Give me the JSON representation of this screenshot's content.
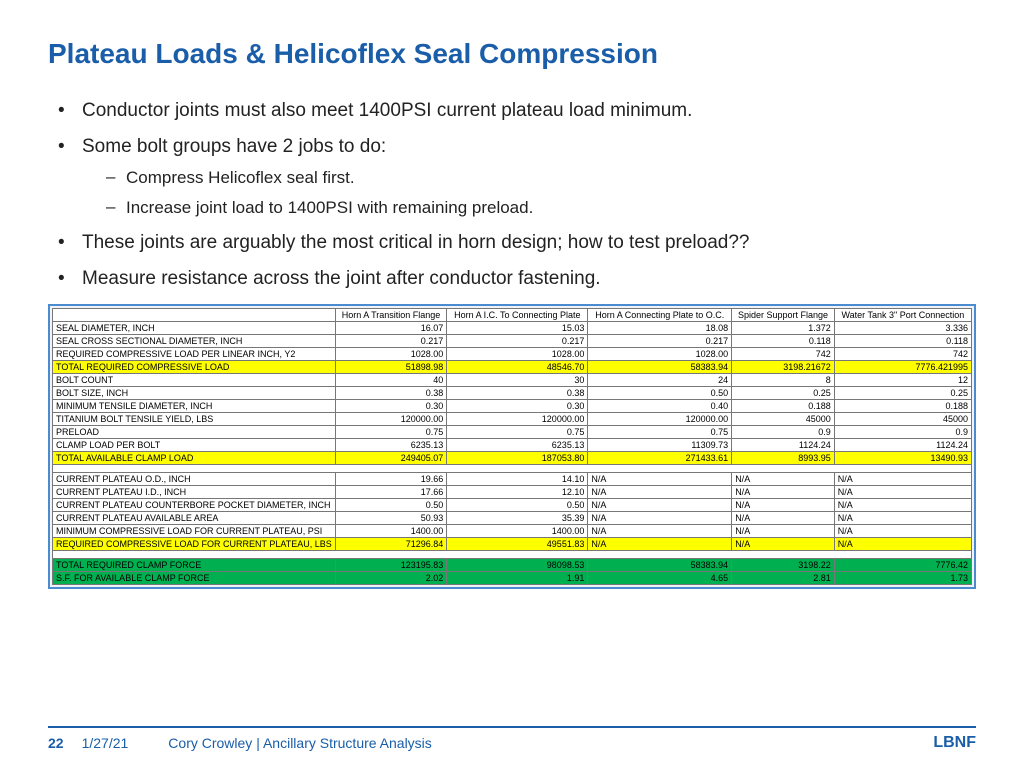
{
  "title": "Plateau Loads & Helicoflex Seal Compression",
  "bullets": {
    "b1": "Conductor joints must also meet 1400PSI current plateau load minimum.",
    "b2": "Some bolt groups have 2 jobs to do:",
    "b2a": "Compress Helicoflex seal first.",
    "b2b": "Increase joint load to 1400PSI with remaining preload.",
    "b3": "These joints are arguably the most critical in horn design; how to test preload??",
    "b4": "Measure resistance across the joint after conductor fastening."
  },
  "table": {
    "columns": [
      "",
      "Horn A Transition Flange",
      "Horn A I.C. To Connecting Plate",
      "Horn A Connecting Plate to O.C.",
      "Spider Support Flange",
      "Water Tank 3\" Port Connection"
    ],
    "rows": [
      {
        "label": "SEAL DIAMETER, INCH",
        "vals": [
          "16.07",
          "15.03",
          "18.08",
          "1.372",
          "3.336"
        ],
        "hl": ""
      },
      {
        "label": "SEAL CROSS SECTIONAL DIAMETER, INCH",
        "vals": [
          "0.217",
          "0.217",
          "0.217",
          "0.118",
          "0.118"
        ],
        "hl": ""
      },
      {
        "label": "REQUIRED COMPRESSIVE LOAD PER LINEAR INCH, Y2",
        "vals": [
          "1028.00",
          "1028.00",
          "1028.00",
          "742",
          "742"
        ],
        "hl": ""
      },
      {
        "label": "TOTAL REQUIRED COMPRESSIVE LOAD",
        "vals": [
          "51898.98",
          "48546.70",
          "58383.94",
          "3198.21672",
          "7776.421995"
        ],
        "hl": "yellow"
      },
      {
        "label": "BOLT COUNT",
        "vals": [
          "40",
          "30",
          "24",
          "8",
          "12"
        ],
        "hl": ""
      },
      {
        "label": "BOLT SIZE, INCH",
        "vals": [
          "0.38",
          "0.38",
          "0.50",
          "0.25",
          "0.25"
        ],
        "hl": ""
      },
      {
        "label": "MINIMUM TENSILE DIAMETER, INCH",
        "vals": [
          "0.30",
          "0.30",
          "0.40",
          "0.188",
          "0.188"
        ],
        "hl": ""
      },
      {
        "label": "TITANIUM BOLT TENSILE YIELD, LBS",
        "vals": [
          "120000.00",
          "120000.00",
          "120000.00",
          "45000",
          "45000"
        ],
        "hl": ""
      },
      {
        "label": "PRELOAD",
        "vals": [
          "0.75",
          "0.75",
          "0.75",
          "0.9",
          "0.9"
        ],
        "hl": ""
      },
      {
        "label": "CLAMP LOAD PER BOLT",
        "vals": [
          "6235.13",
          "6235.13",
          "11309.73",
          "1124.24",
          "1124.24"
        ],
        "hl": ""
      },
      {
        "label": "TOTAL AVAILABLE CLAMP LOAD",
        "vals": [
          "249405.07",
          "187053.80",
          "271433.61",
          "8993.95",
          "13490.93"
        ],
        "hl": "yellow"
      }
    ],
    "rows2": [
      {
        "label": "CURRENT PLATEAU O.D., INCH",
        "vals": [
          "19.66",
          "14.10",
          "N/A",
          "N/A",
          "N/A"
        ],
        "hl": ""
      },
      {
        "label": "CURRENT PLATEAU I.D., INCH",
        "vals": [
          "17.66",
          "12.10",
          "N/A",
          "N/A",
          "N/A"
        ],
        "hl": ""
      },
      {
        "label": "CURRENT PLATEAU COUNTERBORE POCKET DIAMETER, INCH",
        "vals": [
          "0.50",
          "0.50",
          "N/A",
          "N/A",
          "N/A"
        ],
        "hl": ""
      },
      {
        "label": "CURRENT PLATEAU AVAILABLE AREA",
        "vals": [
          "50.93",
          "35.39",
          "N/A",
          "N/A",
          "N/A"
        ],
        "hl": ""
      },
      {
        "label": "MINIMUM COMPRESSIVE LOAD FOR CURRENT PLATEAU, PSI",
        "vals": [
          "1400.00",
          "1400.00",
          "N/A",
          "N/A",
          "N/A"
        ],
        "hl": ""
      },
      {
        "label": "REQUIRED COMPRESSIVE LOAD FOR CURRENT PLATEAU, LBS",
        "vals": [
          "71296.84",
          "49551.83",
          "N/A",
          "N/A",
          "N/A"
        ],
        "hl": "yellow"
      }
    ],
    "rows3": [
      {
        "label": "TOTAL REQUIRED CLAMP FORCE",
        "vals": [
          "123195.83",
          "98098.53",
          "58383.94",
          "3198.22",
          "7776.42"
        ],
        "hl": "green"
      },
      {
        "label": "S.F. FOR AVAILABLE CLAMP FORCE",
        "vals": [
          "2.02",
          "1.91",
          "4.65",
          "2.81",
          "1.73"
        ],
        "hl": "green"
      }
    ]
  },
  "footer": {
    "page": "22",
    "date": "1/27/21",
    "author": "Cory Crowley | Ancillary Structure Analysis",
    "logo": "LBNF"
  },
  "colors": {
    "title": "#1a5da8",
    "highlight_yellow": "#ffff00",
    "highlight_green": "#00b050",
    "table_border": "#4a8ccf"
  }
}
